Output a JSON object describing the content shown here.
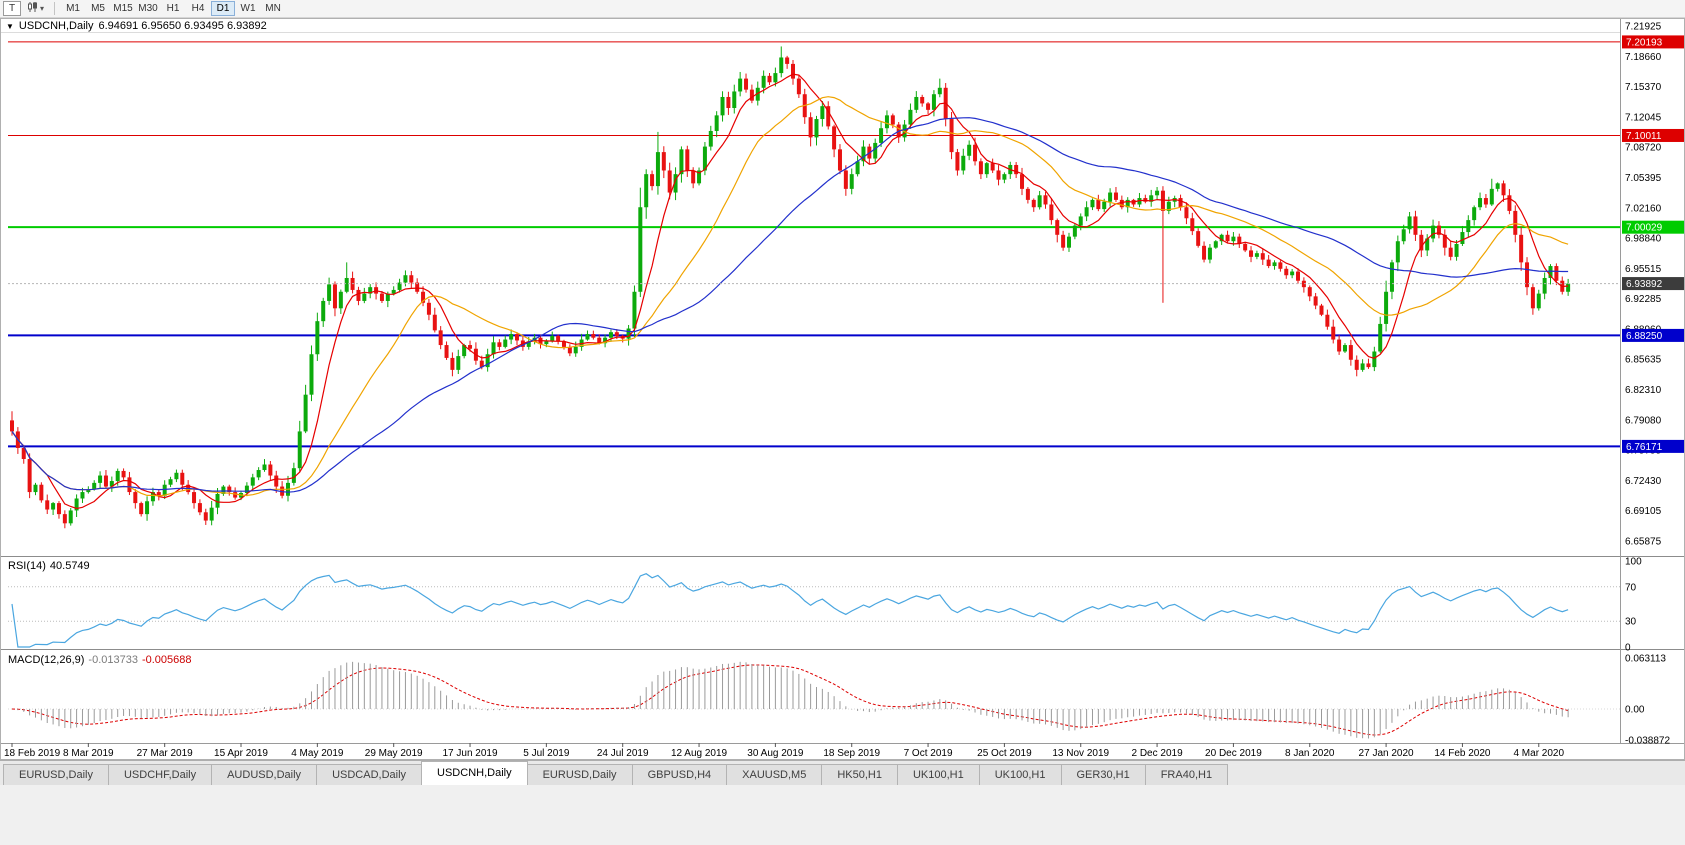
{
  "window": {
    "menu_icon": "▼",
    "title": "USDCNH,Daily",
    "ohlc_text": "6.94691 6.95650 6.93495 6.93892"
  },
  "toolbar": {
    "tool_button": "T",
    "chart_type_caret": "▾",
    "timeframes": [
      "M1",
      "M5",
      "M15",
      "M30",
      "H1",
      "H4",
      "D1",
      "W1",
      "MN"
    ],
    "active_timeframe": "D1"
  },
  "price_axis": {
    "ticks": [
      "7.21925",
      "7.18660",
      "7.15370",
      "7.12045",
      "7.08720",
      "7.05395",
      "7.02160",
      "6.98840",
      "6.95515",
      "6.92285",
      "6.88960",
      "6.85635",
      "6.82310",
      "6.79080",
      "6.75755",
      "6.72430",
      "6.69105",
      "6.65875"
    ],
    "current": {
      "label": "6.93892",
      "price": 6.93892,
      "bg": "#3c3c3c"
    }
  },
  "hlines": [
    {
      "label": "7.20193",
      "price": 7.20193,
      "color": "#dd0000",
      "width": 1
    },
    {
      "label": "7.10011",
      "price": 7.10011,
      "color": "#dd0000",
      "width": 1
    },
    {
      "label": "7.00029",
      "price": 7.00029,
      "color": "#00cc00",
      "width": 2
    },
    {
      "label": "6.88250",
      "price": 6.8825,
      "color": "#0000cc",
      "width": 2
    },
    {
      "label": "6.76171",
      "price": 6.76171,
      "color": "#0000cc",
      "width": 2
    }
  ],
  "chart_data": {
    "type": "candlestick",
    "symbol": "USDCNH",
    "timeframe": "Daily",
    "title": "USDCNH,Daily",
    "y_axis": {
      "top": 7.21925,
      "bottom": 6.65875
    },
    "x_labels": [
      "18 Feb 2019",
      "8 Mar 2019",
      "27 Mar 2019",
      "15 Apr 2019",
      "4 May 2019",
      "29 May 2019",
      "17 Jun 2019",
      "5 Jul 2019",
      "24 Jul 2019",
      "12 Aug 2019",
      "30 Aug 2019",
      "18 Sep 2019",
      "7 Oct 2019",
      "25 Oct 2019",
      "13 Nov 2019",
      "2 Dec 2019",
      "20 Dec 2019",
      "8 Jan 2020",
      "27 Jan 2020",
      "14 Feb 2020",
      "4 Mar 2020"
    ],
    "label_every": 13,
    "first_open": 6.79,
    "closes": [
      6.778,
      6.76,
      6.748,
      6.712,
      6.72,
      6.703,
      6.693,
      6.7,
      6.688,
      6.678,
      6.692,
      6.705,
      6.712,
      6.715,
      6.722,
      6.73,
      6.718,
      6.724,
      6.735,
      6.728,
      6.712,
      6.7,
      6.688,
      6.702,
      6.712,
      6.708,
      6.72,
      6.726,
      6.733,
      6.72,
      6.712,
      6.7,
      6.69,
      6.681,
      6.695,
      6.71,
      6.718,
      6.712,
      6.706,
      6.711,
      6.719,
      6.728,
      6.736,
      6.742,
      6.73,
      6.718,
      6.708,
      6.722,
      6.738,
      6.778,
      6.818,
      6.862,
      6.898,
      6.92,
      6.938,
      6.912,
      6.93,
      6.945,
      6.932,
      6.92,
      6.928,
      6.935,
      6.928,
      6.92,
      6.928,
      6.932,
      6.94,
      6.948,
      6.94,
      6.93,
      6.918,
      6.905,
      6.888,
      6.872,
      6.858,
      6.845,
      6.86,
      6.872,
      6.868,
      6.855,
      6.848,
      6.862,
      6.875,
      6.87,
      6.878,
      6.884,
      6.877,
      6.87,
      6.876,
      6.88,
      6.873,
      6.876,
      6.882,
      6.876,
      6.87,
      6.863,
      6.87,
      6.878,
      6.884,
      6.88,
      6.874,
      6.88,
      6.886,
      6.882,
      6.879,
      6.89,
      6.93,
      7.022,
      7.058,
      7.045,
      7.082,
      7.062,
      7.038,
      7.058,
      7.085,
      7.062,
      7.048,
      7.062,
      7.088,
      7.105,
      7.122,
      7.142,
      7.13,
      7.148,
      7.162,
      7.15,
      7.138,
      7.152,
      7.165,
      7.158,
      7.168,
      7.185,
      7.178,
      7.162,
      7.145,
      7.12,
      7.098,
      7.118,
      7.132,
      7.11,
      7.085,
      7.062,
      7.042,
      7.058,
      7.072,
      7.088,
      7.075,
      7.092,
      7.108,
      7.122,
      7.112,
      7.098,
      7.112,
      7.128,
      7.142,
      7.135,
      7.128,
      7.145,
      7.152,
      7.118,
      7.082,
      7.062,
      7.078,
      7.09,
      7.072,
      7.058,
      7.07,
      7.062,
      7.052,
      7.058,
      7.068,
      7.058,
      7.042,
      7.03,
      7.022,
      7.035,
      7.025,
      7.008,
      6.992,
      6.978,
      6.99,
      7.002,
      7.012,
      7.022,
      7.03,
      7.02,
      7.028,
      7.038,
      7.03,
      7.022,
      7.03,
      7.025,
      7.032,
      7.028,
      7.035,
      7.04,
      7.018,
      7.028,
      7.032,
      7.022,
      7.01,
      6.996,
      6.98,
      6.965,
      6.978,
      6.985,
      6.992,
      6.985,
      6.99,
      6.982,
      6.975,
      6.968,
      6.972,
      6.965,
      6.958,
      6.962,
      6.955,
      6.948,
      6.952,
      6.942,
      6.935,
      6.925,
      6.915,
      6.905,
      6.892,
      6.878,
      6.865,
      6.872,
      6.856,
      6.845,
      6.852,
      6.848,
      6.865,
      6.895,
      6.93,
      6.962,
      6.985,
      6.998,
      7.012,
      6.992,
      6.975,
      6.988,
      7.002,
      6.992,
      6.978,
      6.968,
      6.982,
      6.995,
      7.008,
      7.022,
      7.032,
      7.025,
      7.042,
      7.048,
      7.035,
      7.018,
      6.992,
      6.962,
      6.935,
      6.912,
      6.928,
      6.945,
      6.958,
      6.942,
      6.93,
      6.9389
    ],
    "wick_overrides": [
      {
        "i": 0,
        "h": 6.8
      },
      {
        "i": 57,
        "h": 6.962
      },
      {
        "i": 75,
        "l": 6.838
      },
      {
        "i": 110,
        "h": 7.104
      },
      {
        "i": 131,
        "h": 7.197
      },
      {
        "i": 158,
        "h": 7.162
      },
      {
        "i": 196,
        "l": 6.918
      },
      {
        "i": 229,
        "l": 6.838
      },
      {
        "i": 252,
        "h": 7.053
      },
      {
        "i": 259,
        "l": 6.905
      }
    ],
    "up_color": "#0caa0c",
    "down_color": "#e81212",
    "moving_averages": [
      {
        "period": 7,
        "color": "#e60000"
      },
      {
        "period": 21,
        "color": "#f0a400"
      },
      {
        "period": 45,
        "color": "#2230cc"
      }
    ]
  },
  "rsi": {
    "label": "RSI(14)",
    "value": "40.5749",
    "period": 14,
    "levels": [
      "100",
      "70",
      "30",
      "0"
    ],
    "level_values": [
      100,
      70,
      30,
      0
    ],
    "line_color": "#4aa6e0"
  },
  "macd": {
    "label": "MACD(12,26,9)",
    "value_main": "-0.013733",
    "value_signal": "-0.005688",
    "axis_max": "0.063113",
    "axis_zero": "0.00",
    "axis_min": "-0.038872",
    "histogram_color": "#9a9a9a",
    "signal_color": "#dd0000"
  },
  "tabs": [
    {
      "label": "EURUSD,Daily",
      "active": false
    },
    {
      "label": "USDCHF,Daily",
      "active": false
    },
    {
      "label": "AUDUSD,Daily",
      "active": false
    },
    {
      "label": "USDCAD,Daily",
      "active": false
    },
    {
      "label": "USDCNH,Daily",
      "active": true
    },
    {
      "label": "EURUSD,Daily",
      "active": false
    },
    {
      "label": "GBPUSD,H4",
      "active": false
    },
    {
      "label": "XAUUSD,M5",
      "active": false
    },
    {
      "label": "HK50,H1",
      "active": false
    },
    {
      "label": "UK100,H1",
      "active": false
    },
    {
      "label": "UK100,H1",
      "active": false
    },
    {
      "label": "GER30,H1",
      "active": false
    },
    {
      "label": "FRA40,H1",
      "active": false
    }
  ]
}
